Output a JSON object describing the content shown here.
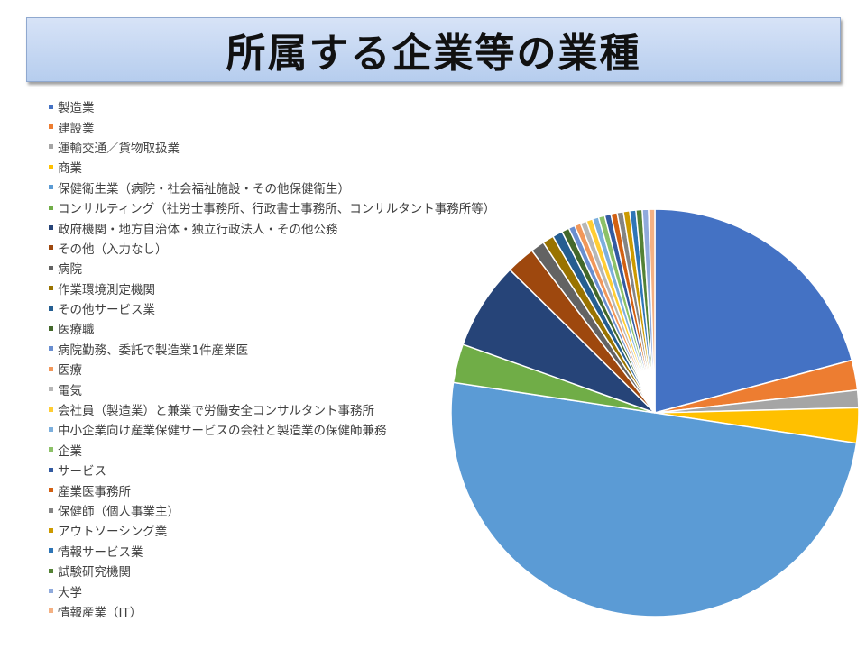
{
  "title": "所属する企業等の業種",
  "chart_data": {
    "type": "pie",
    "categories": [
      "製造業",
      "建設業",
      "運輸交通／貨物取扱業",
      "商業",
      "保健衛生業（病院・社会福祉施設・その他保健衛生）",
      "コンサルティング（社労士事務所、行政書士事務所、コンサルタント事務所等）",
      "政府機関・地方自治体・独立行政法人・その他公務",
      "その他（入力なし）",
      "病院",
      "作業環境測定機関",
      "その他サービス業",
      "医療職",
      "病院勤務、委託で製造業1件産業医",
      "医療",
      "電気",
      "会社員（製造業）と兼業で労働安全コンサルタント事務所",
      "中小企業向け産業保健サービスの会社と製造業の保健師兼務",
      "企業",
      "サービス",
      "産業医事務所",
      "保健師（個人事業主）",
      "アウトソーシング業",
      "情報サービス業",
      "試験研究機関",
      "大学",
      "情報産業（IT）"
    ],
    "values": [
      21.0,
      2.4,
      1.4,
      2.8,
      50.4,
      3.1,
      7.0,
      2.3,
      1.1,
      0.9,
      0.8,
      0.6,
      0.5,
      0.5,
      0.5,
      0.5,
      0.5,
      0.5,
      0.5,
      0.5,
      0.5,
      0.5,
      0.5,
      0.5,
      0.5,
      0.5
    ],
    "colors": [
      "#4472c4",
      "#ed7d31",
      "#a5a5a5",
      "#ffc000",
      "#5b9bd5",
      "#70ad47",
      "#264478",
      "#9e480e",
      "#636363",
      "#997300",
      "#255e91",
      "#43682b",
      "#698ed0",
      "#f1975a",
      "#b7b7b7",
      "#ffcd33",
      "#7cafdd",
      "#8cc168",
      "#335aa1",
      "#d26012",
      "#848484",
      "#cc9a00",
      "#2e75b6",
      "#548235",
      "#8faadc",
      "#f4b183"
    ],
    "start_angle": "12 o'clock",
    "direction": "clockwise",
    "legend_position": "left"
  }
}
